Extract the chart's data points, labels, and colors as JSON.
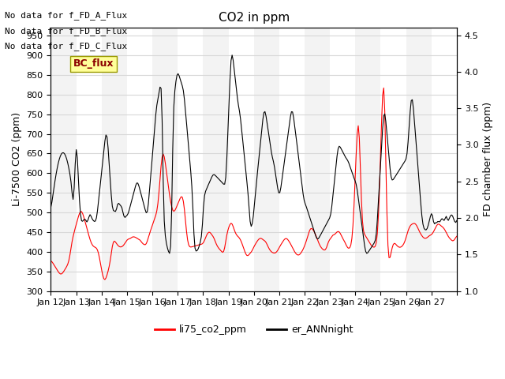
{
  "title": "CO2 in ppm",
  "xlabel": "",
  "ylabel_left": "Li-7500 CO2 (ppm)",
  "ylabel_right": "FD chamber flux (ppm)",
  "ylim_left": [
    300,
    970
  ],
  "ylim_right": [
    1.0,
    4.6
  ],
  "yticks_left": [
    300,
    350,
    400,
    450,
    500,
    550,
    600,
    650,
    700,
    750,
    800,
    850,
    900,
    950
  ],
  "yticks_right": [
    1.0,
    1.5,
    2.0,
    2.5,
    3.0,
    3.5,
    4.0,
    4.5
  ],
  "xtick_positions": [
    0,
    1,
    2,
    3,
    4,
    5,
    6,
    7,
    8,
    9,
    10,
    11,
    12,
    13,
    14,
    15,
    16
  ],
  "xtick_labels": [
    "Jan 12",
    "Jan 13",
    "Jan 14",
    "Jan 15",
    "Jan 16",
    "Jan 17",
    "Jan 18",
    "Jan 19",
    "Jan 20",
    "Jan 21",
    "Jan 22",
    "Jan 23",
    "Jan 24",
    "Jan 25",
    "Jan 26",
    "Jan 27",
    ""
  ],
  "color_red": "#FF0000",
  "color_black": "#000000",
  "legend_labels": [
    "li75_co2_ppm",
    "er_ANNnight"
  ],
  "text_lines": [
    "No data for f_FD_A_Flux",
    "No data for f_FD_B_Flux",
    "No data for f_FD_C_Flux"
  ],
  "legend_box_label": "BC_flux",
  "background_color": "#ffffff",
  "grid_color": "#d8d8d8",
  "figsize": [
    6.4,
    4.8
  ],
  "dpi": 100
}
